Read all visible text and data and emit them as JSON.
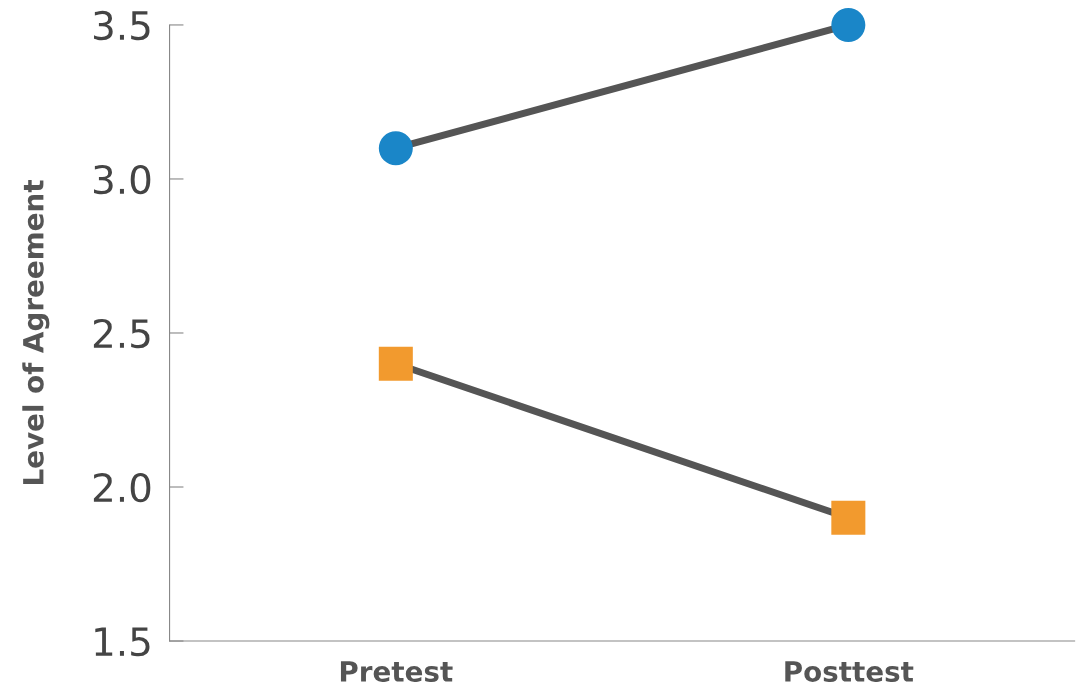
{
  "chart_data": {
    "type": "line",
    "ylabel": "Level of Agreement",
    "categories": [
      "Pretest",
      "Posttest"
    ],
    "series": [
      {
        "color": "#555555",
        "colors": [
          "#1a86c8",
          "#1a86c8"
        ],
        "marker": "circle",
        "values": [
          3.1,
          3.5
        ]
      },
      {
        "color": "#555555",
        "colors": [
          "#f29a2e",
          "#f29a2e"
        ],
        "marker": "square",
        "values": [
          2.4,
          1.9
        ]
      }
    ],
    "ylim": [
      1.5,
      3.5
    ],
    "yticks": [
      1.5,
      {
        "value": 2,
        "label": "2.0"
      },
      2.5,
      {
        "value": 3,
        "label": "3.0"
      },
      3.5
    ],
    "grid": false,
    "legend": false
  }
}
